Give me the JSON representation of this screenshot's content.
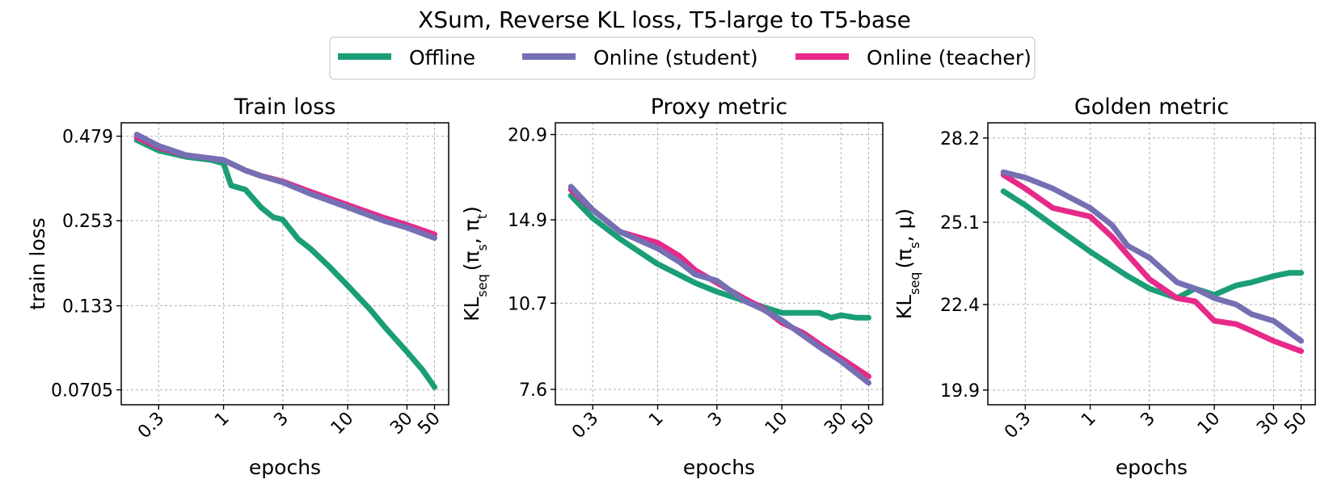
{
  "figure_title": "XSum, Reverse KL loss, T5-large to T5-base",
  "legend": [
    {
      "label": "Offline",
      "color": "#1b9e77"
    },
    {
      "label": "Online (student)",
      "color": "#7570b3"
    },
    {
      "label": "Online (teacher)",
      "color": "#e7298a"
    }
  ],
  "chart_data": [
    {
      "type": "line",
      "title": "Train loss",
      "xlabel": "epochs",
      "ylabel": "train loss",
      "xscale": "log",
      "yscale": "log",
      "xlim": [
        0.15,
        65
      ],
      "ylim": [
        0.063,
        0.53
      ],
      "xticks": [
        0.3,
        1,
        3,
        10,
        30,
        50
      ],
      "xtick_labels": [
        "0.3",
        "1",
        "3",
        "10",
        "30",
        "50"
      ],
      "yticks": [
        0.479,
        0.253,
        0.133,
        0.0705
      ],
      "ytick_labels": [
        "0.479",
        "0.253",
        "0.133",
        "0.0705"
      ],
      "series": [
        {
          "name": "Offline",
          "color": "#1b9e77",
          "x": [
            0.2,
            0.3,
            0.5,
            0.8,
            1.0,
            1.15,
            1.5,
            2.0,
            2.5,
            3.0,
            4.0,
            5.0,
            7.0,
            10,
            15,
            20,
            30,
            40,
            50
          ],
          "y": [
            0.465,
            0.43,
            0.41,
            0.4,
            0.39,
            0.33,
            0.32,
            0.28,
            0.26,
            0.255,
            0.22,
            0.205,
            0.18,
            0.155,
            0.13,
            0.113,
            0.094,
            0.082,
            0.072
          ]
        },
        {
          "name": "Online (teacher)",
          "color": "#e7298a",
          "x": [
            0.2,
            0.3,
            0.5,
            0.8,
            1.0,
            1.5,
            2,
            3,
            5,
            10,
            20,
            30,
            50
          ],
          "y": [
            0.475,
            0.44,
            0.415,
            0.405,
            0.4,
            0.37,
            0.355,
            0.34,
            0.315,
            0.285,
            0.258,
            0.245,
            0.228
          ]
        },
        {
          "name": "Online (student)",
          "color": "#7570b3",
          "x": [
            0.2,
            0.3,
            0.5,
            0.8,
            1.0,
            1.5,
            2,
            3,
            5,
            10,
            20,
            30,
            50
          ],
          "y": [
            0.485,
            0.445,
            0.415,
            0.405,
            0.4,
            0.37,
            0.355,
            0.338,
            0.31,
            0.28,
            0.252,
            0.24,
            0.222
          ]
        }
      ]
    },
    {
      "type": "line",
      "title": "Proxy metric",
      "xlabel": "epochs",
      "ylabel": "KL_seq(π_s, π_t)",
      "xscale": "log",
      "yscale": "log",
      "xlim": [
        0.15,
        65
      ],
      "ylim": [
        7.15,
        21.9
      ],
      "xticks": [
        0.3,
        1,
        3,
        10,
        30,
        50
      ],
      "xtick_labels": [
        "0.3",
        "1",
        "3",
        "10",
        "30",
        "50"
      ],
      "yticks": [
        20.9,
        14.9,
        10.7,
        7.6
      ],
      "ytick_labels": [
        "20.9",
        "14.9",
        "10.7",
        "7.6"
      ],
      "series": [
        {
          "name": "Offline",
          "color": "#1b9e77",
          "x": [
            0.2,
            0.3,
            0.5,
            1,
            2,
            3,
            5,
            7,
            10,
            15,
            20,
            25,
            30,
            40,
            50
          ],
          "y": [
            16.4,
            15.0,
            13.8,
            12.5,
            11.6,
            11.2,
            10.8,
            10.55,
            10.3,
            10.3,
            10.3,
            10.1,
            10.2,
            10.1,
            10.1
          ]
        },
        {
          "name": "Online (teacher)",
          "color": "#e7298a",
          "x": [
            0.2,
            0.3,
            0.5,
            1,
            1.5,
            2,
            3,
            5,
            7,
            10,
            15,
            20,
            30,
            50
          ],
          "y": [
            16.8,
            15.5,
            14.2,
            13.6,
            12.9,
            12.2,
            11.6,
            10.9,
            10.5,
            9.9,
            9.5,
            9.1,
            8.6,
            8.0
          ]
        },
        {
          "name": "Online (student)",
          "color": "#7570b3",
          "x": [
            0.2,
            0.3,
            0.5,
            1,
            1.5,
            2,
            3,
            5,
            7,
            10,
            15,
            20,
            30,
            50
          ],
          "y": [
            17.0,
            15.5,
            14.2,
            13.3,
            12.6,
            12.0,
            11.7,
            10.8,
            10.45,
            10.0,
            9.4,
            9.0,
            8.5,
            7.8
          ]
        }
      ]
    },
    {
      "type": "line",
      "title": "Golden metric",
      "xlabel": "epochs",
      "ylabel": "KL_seq(π_s, μ)",
      "xscale": "log",
      "yscale": "log",
      "xlim": [
        0.15,
        65
      ],
      "ylim": [
        19.5,
        28.8
      ],
      "xticks": [
        0.3,
        1,
        3,
        10,
        30,
        50
      ],
      "xtick_labels": [
        "0.3",
        "1",
        "3",
        "10",
        "30",
        "50"
      ],
      "yticks": [
        28.2,
        25.1,
        22.4,
        19.9
      ],
      "ytick_labels": [
        "28.2",
        "25.1",
        "22.4",
        "19.9"
      ],
      "series": [
        {
          "name": "Offline",
          "color": "#1b9e77",
          "x": [
            0.2,
            0.3,
            0.5,
            1,
            2,
            3,
            5,
            7,
            10,
            15,
            20,
            30,
            40,
            50
          ],
          "y": [
            26.2,
            25.7,
            25.0,
            24.1,
            23.3,
            22.9,
            22.6,
            22.9,
            22.7,
            23.0,
            23.1,
            23.3,
            23.4,
            23.4
          ]
        },
        {
          "name": "Online (teacher)",
          "color": "#e7298a",
          "x": [
            0.2,
            0.3,
            0.5,
            1,
            1.5,
            2,
            3,
            5,
            7,
            10,
            15,
            20,
            30,
            50
          ],
          "y": [
            26.8,
            26.3,
            25.6,
            25.3,
            24.6,
            24.0,
            23.2,
            22.6,
            22.5,
            21.9,
            21.8,
            21.6,
            21.3,
            21.0
          ]
        },
        {
          "name": "Online (student)",
          "color": "#7570b3",
          "x": [
            0.2,
            0.3,
            0.5,
            1,
            1.5,
            2,
            3,
            5,
            7,
            10,
            15,
            20,
            30,
            50
          ],
          "y": [
            26.9,
            26.7,
            26.3,
            25.6,
            25.0,
            24.3,
            23.9,
            23.1,
            22.9,
            22.6,
            22.4,
            22.1,
            21.9,
            21.3
          ]
        }
      ]
    }
  ]
}
